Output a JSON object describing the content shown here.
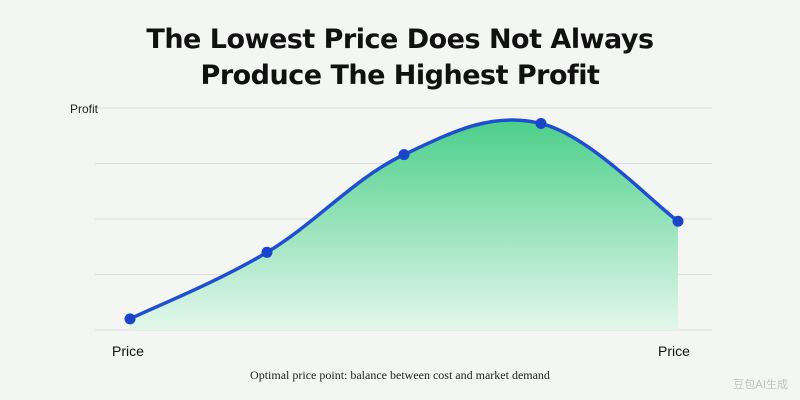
{
  "chart_data": {
    "type": "area",
    "title_lines": [
      "The Lowest Price Does Not Always",
      "Produce The Highest Profit"
    ],
    "ylabel": "Profit",
    "xlabel_left": "Price",
    "xlabel_right": "Price",
    "caption": "Optimal price point: balance between cost and market demand",
    "x": [
      0,
      1,
      2,
      3,
      4
    ],
    "values": [
      5,
      35,
      79,
      93,
      49
    ],
    "ylim": [
      0,
      100
    ],
    "grid": true,
    "colors": {
      "line": "#1f4fd1",
      "marker": "#1a44c9",
      "fill_top": "#4ccf8a",
      "fill_bottom": "#e3f7ec",
      "grid": "#dddddd"
    }
  },
  "watermark": "豆包AI生成"
}
